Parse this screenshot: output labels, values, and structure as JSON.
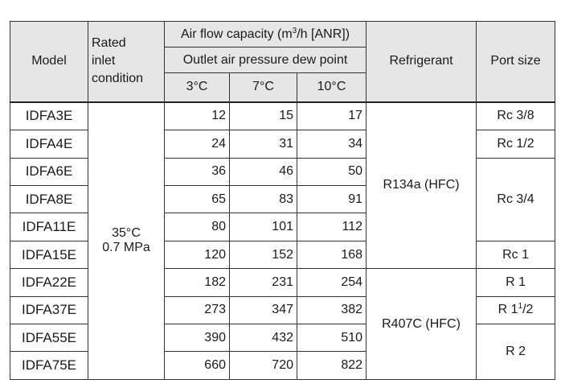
{
  "headers": {
    "model": "Model",
    "rated_inlet": "Rated\ninlet\ncondition",
    "air_flow_pre": "Air flow capacity (m",
    "air_flow_sup": "3",
    "air_flow_post": "/h [ANR])",
    "dew_point": "Outlet air pressure dew point",
    "dew_3": "3°C",
    "dew_7": "7°C",
    "dew_10": "10°C",
    "refrigerant": "Refrigerant",
    "port_size": "Port size"
  },
  "rated_inlet_value": {
    "line1": "35°C",
    "line2": "0.7 MPa"
  },
  "refrigerants": [
    "R134a (HFC)",
    "R407C (HFC)"
  ],
  "ports": {
    "rc38": "Rc 3/8",
    "rc12": "Rc 1/2",
    "rc34": "Rc 3/4",
    "rc1": "Rc 1",
    "r1": "R 1",
    "r112_pre": "R 1",
    "r112_sup": "1",
    "r112_post": "/2",
    "r2": "R 2"
  },
  "rows": [
    {
      "model": "IDFA3E",
      "v3": "12",
      "v7": "15",
      "v10": "17"
    },
    {
      "model": "IDFA4E",
      "v3": "24",
      "v7": "31",
      "v10": "34"
    },
    {
      "model": "IDFA6E",
      "v3": "36",
      "v7": "46",
      "v10": "50"
    },
    {
      "model": "IDFA8E",
      "v3": "65",
      "v7": "83",
      "v10": "91"
    },
    {
      "model": "IDFA11E",
      "v3": "80",
      "v7": "101",
      "v10": "112"
    },
    {
      "model": "IDFA15E",
      "v3": "120",
      "v7": "152",
      "v10": "168"
    },
    {
      "model": "IDFA22E",
      "v3": "182",
      "v7": "231",
      "v10": "254"
    },
    {
      "model": "IDFA37E",
      "v3": "273",
      "v7": "347",
      "v10": "382"
    },
    {
      "model": "IDFA55E",
      "v3": "390",
      "v7": "432",
      "v10": "510"
    },
    {
      "model": "IDFA75E",
      "v3": "660",
      "v7": "720",
      "v10": "822"
    }
  ]
}
